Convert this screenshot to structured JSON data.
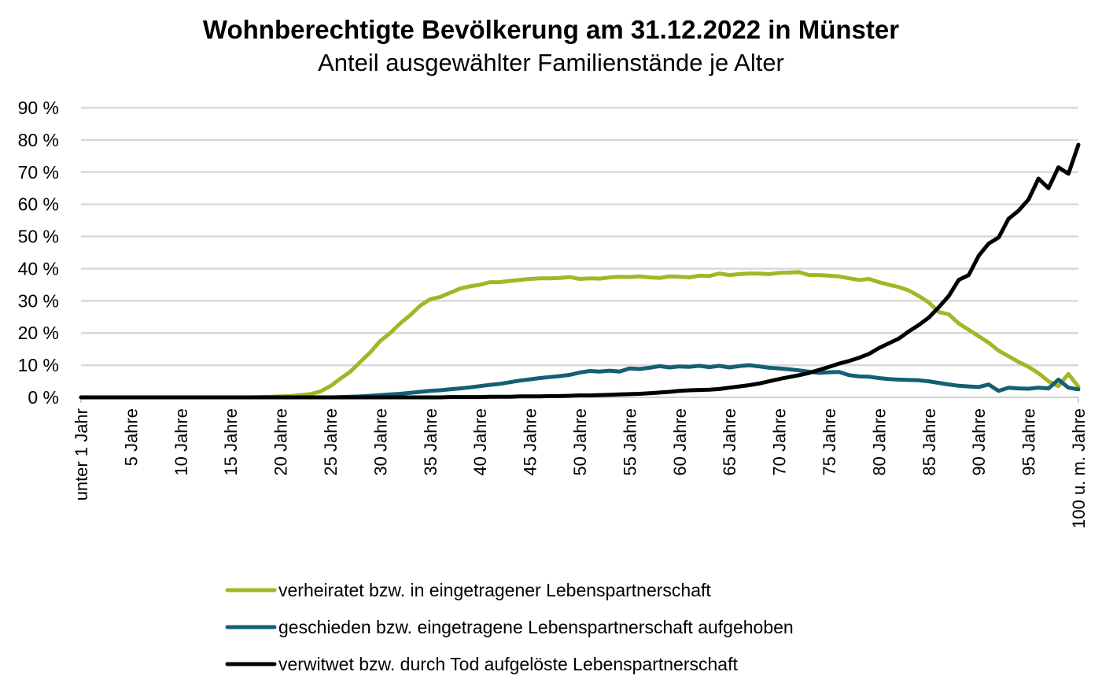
{
  "title": "Wohnberechtigte Bevölkerung am 31.12.2022 in Münster",
  "subtitle": "Anteil ausgewählter Familienstände je Alter",
  "chart_data": {
    "type": "line",
    "title": "Wohnberechtigte Bevölkerung am 31.12.2022 in Münster",
    "subtitle": "Anteil ausgewählter Familienstände je Alter",
    "xlabel": "",
    "ylabel": "",
    "ylim": [
      0,
      90
    ],
    "grid": true,
    "legend_position": "bottom",
    "y_ticks": [
      "0 %",
      "10 %",
      "20 %",
      "30 %",
      "40 %",
      "50 %",
      "60 %",
      "70 %",
      "80 %",
      "90 %"
    ],
    "x_tick_labels": [
      "unter 1 Jahr",
      "5 Jahre",
      "10 Jahre",
      "15 Jahre",
      "20 Jahre",
      "25 Jahre",
      "30 Jahre",
      "35 Jahre",
      "40 Jahre",
      "45 Jahre",
      "50 Jahre",
      "55 Jahre",
      "60 Jahre",
      "65 Jahre",
      "70 Jahre",
      "75 Jahre",
      "80 Jahre",
      "85 Jahre",
      "90 Jahre",
      "95 Jahre",
      "100 u. m. Jahre"
    ],
    "x_tick_ages": [
      0,
      5,
      10,
      15,
      20,
      25,
      30,
      35,
      40,
      45,
      50,
      55,
      60,
      65,
      70,
      75,
      80,
      85,
      90,
      95,
      100
    ],
    "x": [
      0,
      1,
      2,
      3,
      4,
      5,
      6,
      7,
      8,
      9,
      10,
      11,
      12,
      13,
      14,
      15,
      16,
      17,
      18,
      19,
      20,
      21,
      22,
      23,
      24,
      25,
      26,
      27,
      28,
      29,
      30,
      31,
      32,
      33,
      34,
      35,
      36,
      37,
      38,
      39,
      40,
      41,
      42,
      43,
      44,
      45,
      46,
      47,
      48,
      49,
      50,
      51,
      52,
      53,
      54,
      55,
      56,
      57,
      58,
      59,
      60,
      61,
      62,
      63,
      64,
      65,
      66,
      67,
      68,
      69,
      70,
      71,
      72,
      73,
      74,
      75,
      76,
      77,
      78,
      79,
      80,
      81,
      82,
      83,
      84,
      85,
      86,
      87,
      88,
      89,
      90,
      91,
      92,
      93,
      94,
      95,
      96,
      97,
      98,
      99,
      100
    ],
    "series": [
      {
        "name": "verheiratet bzw. in eingetragener Lebenspartnerschaft",
        "color": "#a5b526",
        "values": [
          0,
          0,
          0,
          0,
          0,
          0,
          0,
          0,
          0,
          0,
          0,
          0,
          0,
          0,
          0,
          0,
          0,
          0,
          0.1,
          0.2,
          0.3,
          0.4,
          0.7,
          1.0,
          1.8,
          3.5,
          5.8,
          8.0,
          11.0,
          14.0,
          17.5,
          20.0,
          23.0,
          25.5,
          28.5,
          30.5,
          31.2,
          32.5,
          33.8,
          34.5,
          35.0,
          35.8,
          35.8,
          36.2,
          36.5,
          36.8,
          37.0,
          37.0,
          37.1,
          37.4,
          36.8,
          37.0,
          36.9,
          37.3,
          37.5,
          37.4,
          37.6,
          37.3,
          37.1,
          37.6,
          37.5,
          37.3,
          37.8,
          37.7,
          38.5,
          38.0,
          38.3,
          38.5,
          38.5,
          38.3,
          38.7,
          38.8,
          38.9,
          38.0,
          38.0,
          37.8,
          37.6,
          37.0,
          36.5,
          36.8,
          35.8,
          35.0,
          34.3,
          33.2,
          31.5,
          29.5,
          26.5,
          25.8,
          23.0,
          21.0,
          19.0,
          17.0,
          14.5,
          12.8,
          11.0,
          9.5,
          7.5,
          5.0,
          3.5,
          7.3,
          3.3
        ]
      },
      {
        "name": "geschieden bzw. eingetragene Lebenspartnerschaft aufgehoben",
        "color": "#145f75",
        "values": [
          0,
          0,
          0,
          0,
          0,
          0,
          0,
          0,
          0,
          0,
          0,
          0,
          0,
          0,
          0,
          0,
          0,
          0,
          0,
          0,
          0,
          0,
          0,
          0,
          0,
          0,
          0.1,
          0.2,
          0.3,
          0.5,
          0.7,
          0.9,
          1.1,
          1.4,
          1.7,
          2.0,
          2.2,
          2.5,
          2.8,
          3.1,
          3.5,
          3.9,
          4.2,
          4.7,
          5.2,
          5.6,
          6.0,
          6.3,
          6.6,
          7.0,
          7.7,
          8.2,
          8.0,
          8.3,
          8.0,
          9.0,
          8.8,
          9.2,
          9.7,
          9.3,
          9.6,
          9.5,
          9.8,
          9.4,
          9.8,
          9.3,
          9.7,
          10.0,
          9.6,
          9.2,
          9.0,
          8.7,
          8.4,
          8.0,
          7.6,
          7.8,
          7.9,
          6.9,
          6.5,
          6.4,
          6.0,
          5.7,
          5.5,
          5.4,
          5.3,
          5.0,
          4.5,
          4.0,
          3.6,
          3.4,
          3.2,
          4.0,
          2.0,
          3.0,
          2.8,
          2.7,
          3.0,
          2.8,
          5.5,
          3.0,
          2.5
        ]
      },
      {
        "name": "verwitwet bzw. durch Tod aufgelöste Lebenspartnerschaft",
        "color": "#000000",
        "values": [
          0,
          0,
          0,
          0,
          0,
          0,
          0,
          0,
          0,
          0,
          0,
          0,
          0,
          0,
          0,
          0,
          0,
          0,
          0,
          0,
          0,
          0,
          0,
          0,
          0,
          0,
          0,
          0,
          0,
          0,
          0,
          0,
          0,
          0,
          0,
          0,
          0,
          0.1,
          0.1,
          0.1,
          0.1,
          0.2,
          0.2,
          0.2,
          0.3,
          0.3,
          0.3,
          0.4,
          0.4,
          0.5,
          0.6,
          0.6,
          0.7,
          0.8,
          0.9,
          1.0,
          1.1,
          1.3,
          1.5,
          1.7,
          2.0,
          2.2,
          2.3,
          2.4,
          2.6,
          3.0,
          3.4,
          3.8,
          4.3,
          5.0,
          5.7,
          6.3,
          6.9,
          7.6,
          8.5,
          9.5,
          10.5,
          11.3,
          12.3,
          13.5,
          15.3,
          16.8,
          18.3,
          20.5,
          22.5,
          24.8,
          28.0,
          31.5,
          36.5,
          38.0,
          44.0,
          47.8,
          49.7,
          55.5,
          58.0,
          61.5,
          68.0,
          65.0,
          71.5,
          69.5,
          78.5
        ]
      }
    ]
  }
}
